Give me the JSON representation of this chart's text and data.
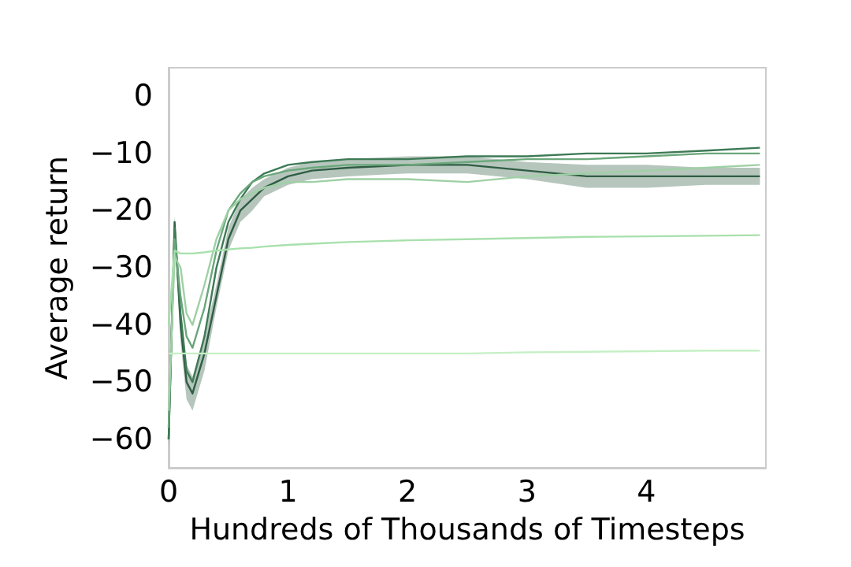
{
  "chart_data": {
    "type": "line",
    "xlabel": "Hundreds of Thousands of Timesteps",
    "ylabel": "Average return",
    "x": [
      0,
      0.05,
      0.1,
      0.15,
      0.2,
      0.3,
      0.4,
      0.5,
      0.6,
      0.7,
      0.8,
      1.0,
      1.2,
      1.5,
      2,
      2.5,
      3,
      3.5,
      4,
      4.5,
      4.95
    ],
    "series": [
      {
        "color": "#2f5d43",
        "values": [
          -60,
          -22,
          -40,
          -50,
          -52,
          -45,
          -35,
          -25,
          -20,
          -18,
          -16,
          -14,
          -13,
          -12.5,
          -12,
          -12,
          -13,
          -14,
          -14,
          -14,
          -14
        ],
        "lower": [
          -62,
          -24,
          -43,
          -53,
          -55,
          -48,
          -37,
          -27,
          -22,
          -20,
          -17.5,
          -15.5,
          -14.5,
          -14,
          -13.5,
          -13.5,
          -14.5,
          -16,
          -16,
          -15.5,
          -15.5
        ],
        "upper": [
          -58,
          -21,
          -37,
          -47,
          -49,
          -42,
          -33,
          -23,
          -18,
          -16,
          -14.5,
          -12.5,
          -11.5,
          -11,
          -10.5,
          -10.5,
          -11.5,
          -12,
          -12,
          -12.5,
          -12.5
        ]
      },
      {
        "color": "#3d7a55",
        "values": [
          -60,
          -23,
          -38,
          -48,
          -50,
          -42,
          -30,
          -22,
          -18,
          -15,
          -13.5,
          -12,
          -11.5,
          -11,
          -11,
          -10.5,
          -10.5,
          -10,
          -10,
          -9.5,
          -9
        ]
      },
      {
        "color": "#6aa77a",
        "values": [
          -58,
          -25,
          -35,
          -42,
          -44,
          -37,
          -27,
          -20,
          -17,
          -15,
          -14,
          -13,
          -12.5,
          -12,
          -12,
          -11.5,
          -11,
          -11,
          -10.5,
          -10,
          -10
        ]
      },
      {
        "color": "#9fd0a5",
        "values": [
          -55,
          -28,
          -30,
          -38,
          -40,
          -33,
          -25,
          -20,
          -18,
          -17,
          -16,
          -15,
          -15,
          -14.5,
          -14.5,
          -15,
          -14,
          -13.5,
          -13,
          -12.5,
          -12
        ]
      },
      {
        "color": "#a8e0ac",
        "values": [
          -40,
          -27,
          -27.5,
          -27.5,
          -27.5,
          -27.3,
          -27,
          -26.8,
          -26.6,
          -26.5,
          -26.3,
          -26,
          -25.8,
          -25.5,
          -25.2,
          -25,
          -24.8,
          -24.6,
          -24.5,
          -24.4,
          -24.3
        ]
      },
      {
        "color": "#c5f0c5",
        "values": [
          -45,
          -45,
          -45,
          -45,
          -45,
          -45,
          -45,
          -45,
          -45,
          -45,
          -45,
          -45,
          -45,
          -45,
          -45,
          -45,
          -44.8,
          -44.7,
          -44.6,
          -44.5,
          -44.5
        ]
      }
    ],
    "xlim": [
      0,
      5
    ],
    "xticks": [
      0,
      1,
      2,
      3,
      4
    ],
    "ylim": [
      -65,
      5
    ],
    "yticks": [
      0,
      -10,
      -20,
      -30,
      -40,
      -50,
      -60
    ],
    "grid": false,
    "marker": "none",
    "line_style": "solid"
  }
}
